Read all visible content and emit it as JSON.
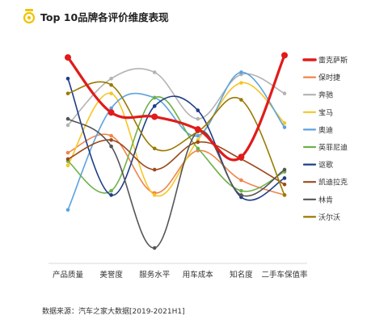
{
  "chart_data": {
    "type": "line",
    "title": "Top 10品牌各评价维度表现",
    "subtitle": "",
    "xlabel": "",
    "ylabel": "",
    "categories": [
      "产品质量",
      "美誉度",
      "服务水平",
      "用车成本",
      "知名度",
      "二手车保值率"
    ],
    "ylim": [
      0,
      100
    ],
    "grid": false,
    "legend_position": "right",
    "series": [
      {
        "name": "雷克萨斯",
        "color": "#e11b1b",
        "values": [
          95,
          69,
          67,
          61,
          48,
          96
        ],
        "highlight": true
      },
      {
        "name": "保时捷",
        "color": "#f0844a",
        "values": [
          50,
          58,
          31,
          51,
          37,
          30
        ]
      },
      {
        "name": "奔驰",
        "color": "#b3b3b3",
        "values": [
          63,
          85,
          88,
          66,
          87,
          78
        ]
      },
      {
        "name": "宝马",
        "color": "#f7c525",
        "values": [
          44,
          78,
          30,
          56,
          83,
          64
        ]
      },
      {
        "name": "奥迪",
        "color": "#5ca3e0",
        "values": [
          23,
          71,
          76,
          58,
          88,
          62
        ]
      },
      {
        "name": "英菲尼迪",
        "color": "#6fb14a",
        "values": [
          46,
          32,
          76,
          52,
          32,
          41
        ]
      },
      {
        "name": "讴歌",
        "color": "#1f3c88",
        "values": [
          85,
          30,
          72,
          70,
          29,
          38
        ]
      },
      {
        "name": "凯迪拉克",
        "color": "#9c4a1c",
        "values": [
          47,
          56,
          42,
          55,
          47,
          35
        ]
      },
      {
        "name": "林肯",
        "color": "#555555",
        "values": [
          66,
          53,
          5,
          60,
          30,
          42
        ]
      },
      {
        "name": "沃尔沃",
        "color": "#9a7a00",
        "values": [
          78,
          82,
          52,
          60,
          75,
          30
        ]
      }
    ]
  },
  "source_note": "数据来源：汽车之家大数据[2019-2021H1]"
}
